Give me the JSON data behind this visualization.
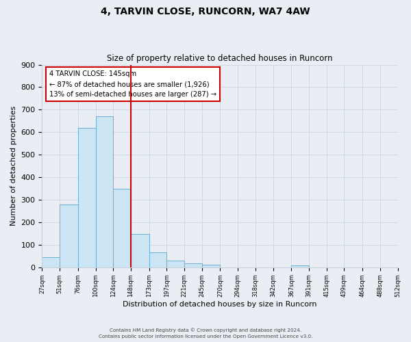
{
  "title": "4, TARVIN CLOSE, RUNCORN, WA7 4AW",
  "subtitle": "Size of property relative to detached houses in Runcorn",
  "xlabel": "Distribution of detached houses by size in Runcorn",
  "ylabel": "Number of detached properties",
  "bar_edges": [
    27,
    51,
    76,
    100,
    124,
    148,
    173,
    197,
    221,
    245,
    270,
    294,
    318,
    342,
    367,
    391,
    415,
    439,
    464,
    488,
    512
  ],
  "bar_heights": [
    45,
    280,
    620,
    670,
    348,
    148,
    65,
    30,
    18,
    10,
    0,
    0,
    0,
    0,
    8,
    0,
    0,
    0,
    0,
    0
  ],
  "bar_color": "#cce5f5",
  "bar_edge_color": "#6baed6",
  "vline_x": 148,
  "vline_color": "#cc0000",
  "annotation_box_color": "#cc0000",
  "annotation_line1": "4 TARVIN CLOSE: 145sqm",
  "annotation_line2": "← 87% of detached houses are smaller (1,926)",
  "annotation_line3": "13% of semi-detached houses are larger (287) →",
  "ylim": [
    0,
    900
  ],
  "yticks": [
    0,
    100,
    200,
    300,
    400,
    500,
    600,
    700,
    800,
    900
  ],
  "tick_labels": [
    "27sqm",
    "51sqm",
    "76sqm",
    "100sqm",
    "124sqm",
    "148sqm",
    "173sqm",
    "197sqm",
    "221sqm",
    "245sqm",
    "270sqm",
    "294sqm",
    "318sqm",
    "342sqm",
    "367sqm",
    "391sqm",
    "415sqm",
    "439sqm",
    "464sqm",
    "488sqm",
    "512sqm"
  ],
  "footer1": "Contains HM Land Registry data © Crown copyright and database right 2024.",
  "footer2": "Contains public sector information licensed under the Open Government Licence v3.0.",
  "bg_color": "#e8eef4",
  "plot_bg_color": "#e8eef4",
  "grid_color": "#c8d0d8"
}
